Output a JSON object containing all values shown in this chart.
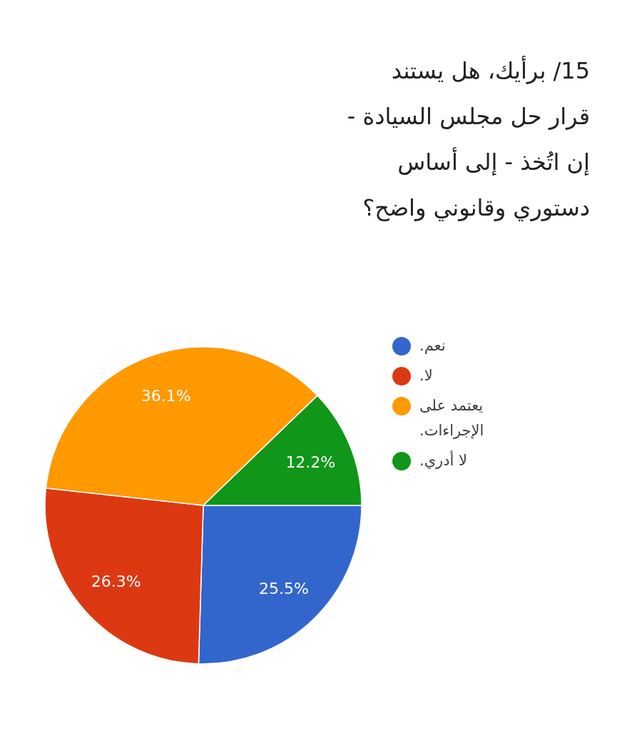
{
  "chart_data": {
    "type": "pie",
    "title": "15/ برأيك، هل يستند قرار حل مجلس السيادة - إن اتُخذ - إلى أساس دستوري وقانوني واضح؟",
    "categories": [
      "نعم.",
      "لا.",
      "يعتمد على الإجراءات.",
      "لا أدري."
    ],
    "values": [
      25.5,
      26.3,
      36.1,
      12.2
    ],
    "colors": [
      "#3366cc",
      "#dc3912",
      "#ff9900",
      "#109618"
    ],
    "value_labels": [
      "25.5%",
      "26.3%",
      "36.1%",
      "12.2%"
    ],
    "legend": "right"
  }
}
